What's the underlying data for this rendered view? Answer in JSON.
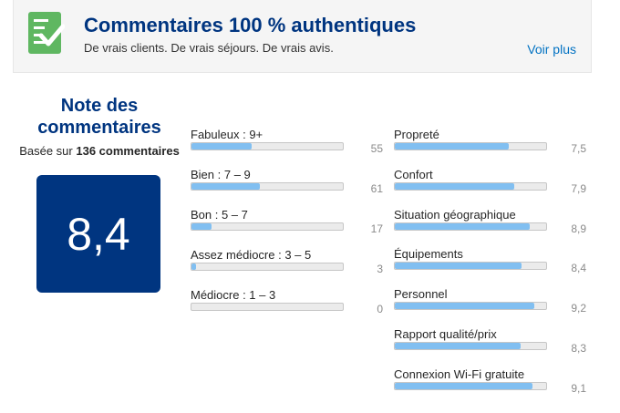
{
  "banner": {
    "title": "Commentaires 100 % authentiques",
    "subtitle": "De vrais clients. De vrais séjours. De vrais avis.",
    "see_more": "Voir plus",
    "icon": "verified-checklist-icon"
  },
  "score": {
    "title": "Note des commentaires",
    "based_prefix": "Basée sur",
    "count_label": "136 commentaires",
    "value": "8,4"
  },
  "distribution": [
    {
      "label": "Fabuleux : 9+",
      "count": "55",
      "fraction": 0.4
    },
    {
      "label": "Bien : 7 – 9",
      "count": "61",
      "fraction": 0.45
    },
    {
      "label": "Bon : 5 – 7",
      "count": "17",
      "fraction": 0.13
    },
    {
      "label": "Assez médiocre : 3 – 5",
      "count": "3",
      "fraction": 0.03
    },
    {
      "label": "Médiocre : 1 – 3",
      "count": "0",
      "fraction": 0.0
    }
  ],
  "categories": [
    {
      "label": "Propreté",
      "score": "7,5",
      "fraction": 0.75
    },
    {
      "label": "Confort",
      "score": "7,9",
      "fraction": 0.79
    },
    {
      "label": "Situation géographique",
      "score": "8,9",
      "fraction": 0.89
    },
    {
      "label": "Équipements",
      "score": "8,4",
      "fraction": 0.84
    },
    {
      "label": "Personnel",
      "score": "9,2",
      "fraction": 0.92
    },
    {
      "label": "Rapport qualité/prix",
      "score": "8,3",
      "fraction": 0.83
    },
    {
      "label": "Connexion Wi-Fi gratuite",
      "score": "9,1",
      "fraction": 0.91
    }
  ],
  "colors": {
    "brand": "#003580",
    "link": "#0071c2",
    "bar_fill": "#81bff1",
    "icon_green": "#5fb761"
  }
}
